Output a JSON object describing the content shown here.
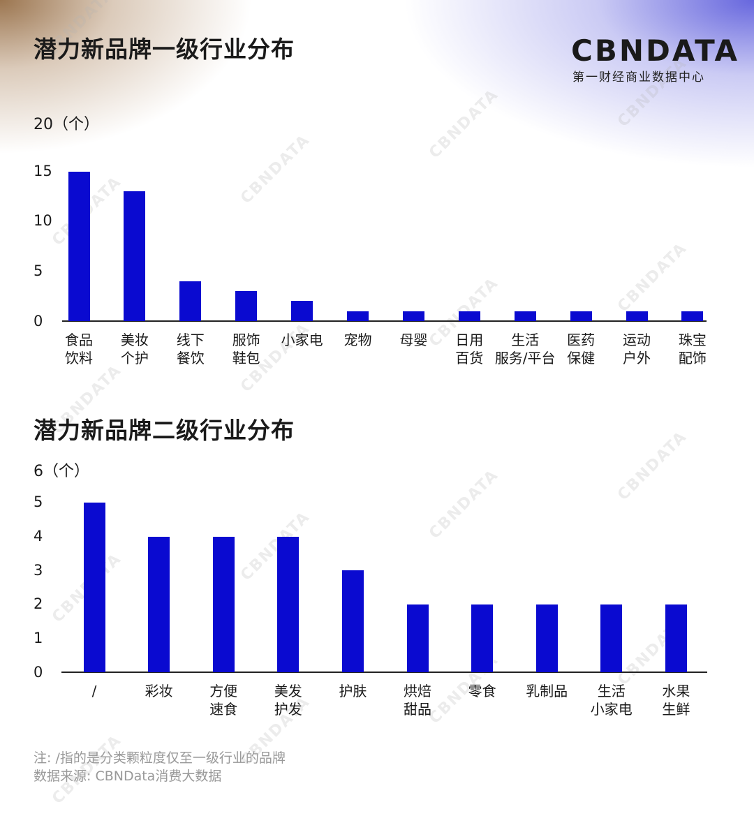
{
  "header": {
    "logo_text": "CBNDATA",
    "logo_subtitle": "第一财经商业数据中心"
  },
  "watermark_text": "CBNDATA",
  "chart1": {
    "title": "潜力新品牌一级行业分布",
    "unit_label": "20（个）",
    "yticks": [
      "15",
      "10",
      "5",
      "0"
    ]
  },
  "chart2": {
    "title": "潜力新品牌二级行业分布",
    "unit_label": "6（个）",
    "yticks": [
      "5",
      "4",
      "3",
      "2",
      "1",
      "0"
    ]
  },
  "footer": {
    "note": "注: /指的是分类颗粒度仅至一级行业的品牌",
    "source": "数据来源: CBNData消费大数据"
  },
  "colors": {
    "bar": "#0a0ad0",
    "text": "#1a1a1a",
    "note": "#999999"
  },
  "chart_data": [
    {
      "type": "bar",
      "title": "潜力新品牌一级行业分布",
      "xlabel": "",
      "ylabel": "个",
      "ylim": [
        0,
        20
      ],
      "yticks": [
        0,
        5,
        10,
        15,
        20
      ],
      "grid": false,
      "categories": [
        "食品饮料",
        "美妆个护",
        "线下餐饮",
        "服饰鞋包",
        "小家电",
        "宠物",
        "母婴",
        "日用百货",
        "生活服务/平台",
        "医药保健",
        "运动户外",
        "珠宝配饰"
      ],
      "category_display": [
        "食品\n饮料",
        "美妆\n个护",
        "线下\n餐饮",
        "服饰\n鞋包",
        "小家电",
        "宠物",
        "母婴",
        "日用\n百货",
        "生活\n服务/平台",
        "医药\n保健",
        "运动\n户外",
        "珠宝\n配饰"
      ],
      "values": [
        15,
        13,
        4,
        3,
        2,
        1,
        1,
        1,
        1,
        1,
        1,
        1
      ]
    },
    {
      "type": "bar",
      "title": "潜力新品牌二级行业分布",
      "xlabel": "",
      "ylabel": "个",
      "ylim": [
        0,
        6
      ],
      "yticks": [
        0,
        1,
        2,
        3,
        4,
        5,
        6
      ],
      "grid": false,
      "categories": [
        "/",
        "彩妆",
        "方便速食",
        "美发护发",
        "护肤",
        "烘焙甜品",
        "零食",
        "乳制品",
        "生活小家电",
        "水果生鲜"
      ],
      "category_display": [
        "/",
        "彩妆",
        "方便\n速食",
        "美发\n护发",
        "护肤",
        "烘焙\n甜品",
        "零食",
        "乳制品",
        "生活\n小家电",
        "水果\n生鲜"
      ],
      "values": [
        5,
        4,
        4,
        4,
        3,
        2,
        2,
        2,
        2,
        2
      ]
    }
  ]
}
